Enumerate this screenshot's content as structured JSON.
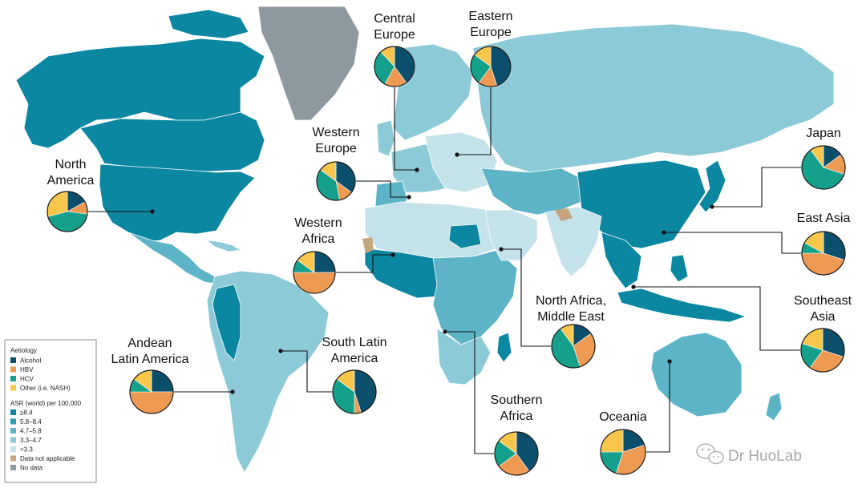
{
  "colors": {
    "alcohol": "#0b4f6c",
    "hbv": "#ef9a52",
    "hcv": "#14a08a",
    "other": "#f7c64b",
    "asr_ge_8_4": "#0b87a1",
    "asr_5_8_8_4": "#2b9db3",
    "asr_4_7_5_8": "#5cb4c6",
    "asr_3_3_4_7": "#8ccad7",
    "asr_lt_3_3": "#c3e2ea",
    "not_applicable": "#c4a57e",
    "no_data": "#8d999f",
    "connector": "#111111"
  },
  "legend": {
    "aetiology_title": "Aetiology",
    "aetiology": [
      {
        "label": "Alcohol",
        "color_key": "alcohol"
      },
      {
        "label": "HBV",
        "color_key": "hbv"
      },
      {
        "label": "HCV",
        "color_key": "hcv"
      },
      {
        "label": "Other (i.e. NASH)",
        "color_key": "other"
      }
    ],
    "asr_title": "ASR (world) per 100,000",
    "asr": [
      {
        "label": "≥8.4",
        "color_key": "asr_ge_8_4"
      },
      {
        "label": "5.8–8.4",
        "color_key": "asr_5_8_8_4"
      },
      {
        "label": "4.7–5.8",
        "color_key": "asr_4_7_5_8"
      },
      {
        "label": "3.3–4.7",
        "color_key": "asr_3_3_4_7"
      },
      {
        "label": "<3.3",
        "color_key": "asr_lt_3_3"
      },
      {
        "label": "Data not applicable",
        "color_key": "not_applicable"
      },
      {
        "label": "No data",
        "color_key": "no_data"
      }
    ]
  },
  "chart_data": [
    {
      "type": "pie",
      "region": "North America",
      "categories": [
        "Alcohol",
        "HBV",
        "HCV",
        "Other (i.e. NASH)"
      ],
      "values": [
        17,
        10,
        44,
        29
      ]
    },
    {
      "type": "pie",
      "region": "Central Europe",
      "categories": [
        "Alcohol",
        "HBV",
        "HCV",
        "Other (i.e. NASH)"
      ],
      "values": [
        40,
        18,
        30,
        12
      ]
    },
    {
      "type": "pie",
      "region": "Eastern Europe",
      "categories": [
        "Alcohol",
        "HBV",
        "HCV",
        "Other (i.e. NASH)"
      ],
      "values": [
        45,
        15,
        25,
        15
      ]
    },
    {
      "type": "pie",
      "region": "Western Europe",
      "categories": [
        "Alcohol",
        "HBV",
        "HCV",
        "Other (i.e. NASH)"
      ],
      "values": [
        35,
        12,
        38,
        15
      ]
    },
    {
      "type": "pie",
      "region": "Japan",
      "categories": [
        "Alcohol",
        "HBV",
        "HCV",
        "Other (i.e. NASH)"
      ],
      "values": [
        15,
        15,
        60,
        10
      ]
    },
    {
      "type": "pie",
      "region": "East Asia",
      "categories": [
        "Alcohol",
        "HBV",
        "HCV",
        "Other (i.e. NASH)"
      ],
      "values": [
        30,
        45,
        8,
        17
      ]
    },
    {
      "type": "pie",
      "region": "Western Africa",
      "categories": [
        "Alcohol",
        "HBV",
        "HCV",
        "Other (i.e. NASH)"
      ],
      "values": [
        25,
        50,
        10,
        15
      ]
    },
    {
      "type": "pie",
      "region": "North Africa, Middle East",
      "categories": [
        "Alcohol",
        "HBV",
        "HCV",
        "Other (i.e. NASH)"
      ],
      "values": [
        15,
        30,
        45,
        10
      ]
    },
    {
      "type": "pie",
      "region": "Southeast Asia",
      "categories": [
        "Alcohol",
        "HBV",
        "HCV",
        "Other (i.e. NASH)"
      ],
      "values": [
        30,
        30,
        20,
        20
      ]
    },
    {
      "type": "pie",
      "region": "Andean Latin America",
      "categories": [
        "Alcohol",
        "HBV",
        "HCV",
        "Other (i.e. NASH)"
      ],
      "values": [
        25,
        50,
        10,
        15
      ]
    },
    {
      "type": "pie",
      "region": "South Latin America",
      "categories": [
        "Alcohol",
        "HBV",
        "HCV",
        "Other (i.e. NASH)"
      ],
      "values": [
        45,
        5,
        35,
        15
      ]
    },
    {
      "type": "pie",
      "region": "Southern Africa",
      "categories": [
        "Alcohol",
        "HBV",
        "HCV",
        "Other (i.e. NASH)"
      ],
      "values": [
        40,
        25,
        20,
        15
      ]
    },
    {
      "type": "pie",
      "region": "Oceania",
      "categories": [
        "Alcohol",
        "HBV",
        "HCV",
        "Other (i.e. NASH)"
      ],
      "values": [
        20,
        35,
        20,
        25
      ]
    }
  ],
  "regions": [
    {
      "id": "north-america",
      "label_lines": [
        "North",
        "America"
      ]
    },
    {
      "id": "central-europe",
      "label_lines": [
        "Central",
        "Europe"
      ]
    },
    {
      "id": "eastern-europe",
      "label_lines": [
        "Eastern",
        "Europe"
      ]
    },
    {
      "id": "western-europe",
      "label_lines": [
        "Western",
        "Europe"
      ]
    },
    {
      "id": "japan",
      "label_lines": [
        "Japan"
      ]
    },
    {
      "id": "east-asia",
      "label_lines": [
        "East Asia"
      ]
    },
    {
      "id": "western-africa",
      "label_lines": [
        "Western",
        "Africa"
      ]
    },
    {
      "id": "north-africa-middle-east",
      "label_lines": [
        "North Africa,",
        "Middle East"
      ]
    },
    {
      "id": "southeast-asia",
      "label_lines": [
        "Southeast",
        "Asia"
      ]
    },
    {
      "id": "andean-latin-america",
      "label_lines": [
        "Andean",
        "Latin America"
      ]
    },
    {
      "id": "south-latin-america",
      "label_lines": [
        "South Latin",
        "America"
      ]
    },
    {
      "id": "southern-africa",
      "label_lines": [
        "Southern",
        "Africa"
      ]
    },
    {
      "id": "oceania",
      "label_lines": [
        "Oceania"
      ]
    }
  ],
  "watermark": {
    "text": "Dr HuoLab",
    "icon": "wechat-icon"
  }
}
